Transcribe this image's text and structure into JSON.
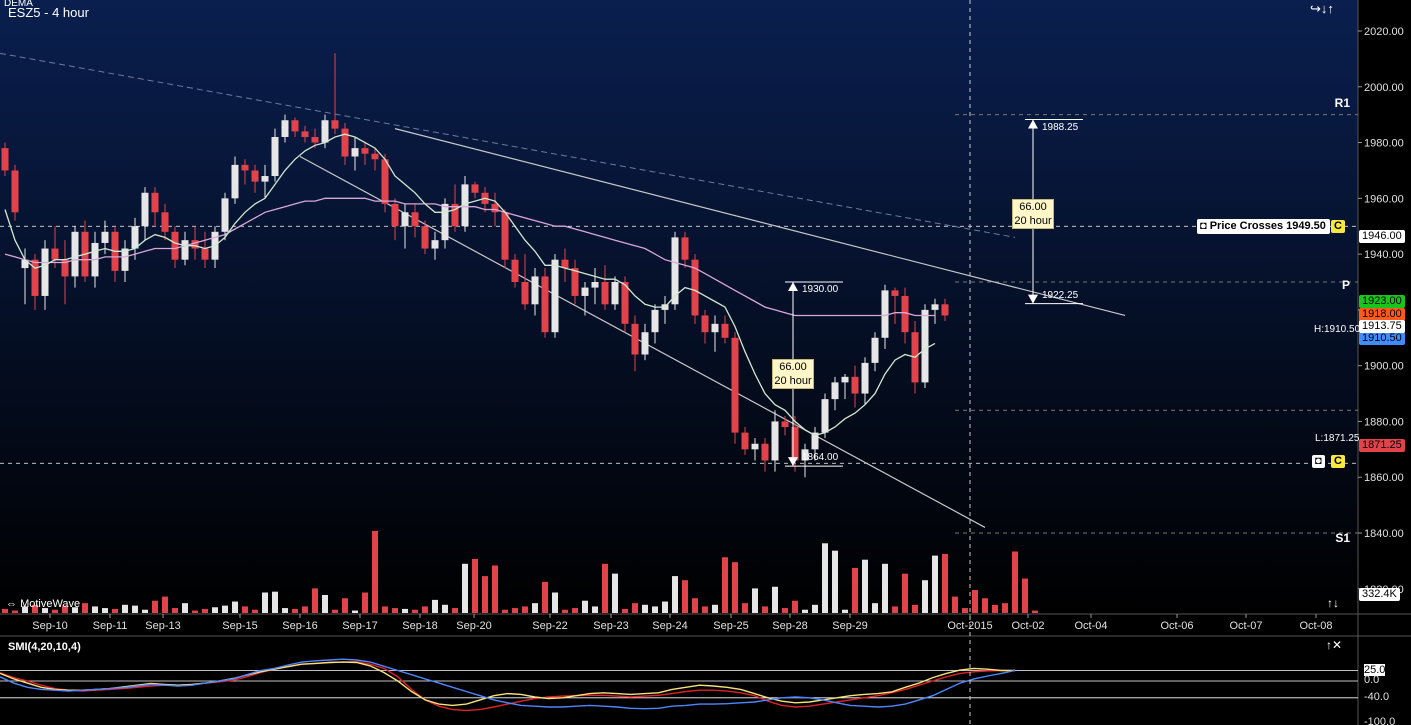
{
  "header": {
    "symbol_label": "ESZ5 - 4 hour",
    "indicator_label": "DEMA",
    "logo_text": "MotiveWave"
  },
  "nav": {
    "arrows": "↪↓↑",
    "scroll": "↑↓",
    "close_icons": "↑✕"
  },
  "colors": {
    "up": "#e6e6e6",
    "down": "#e2434b",
    "bg_top": "#0a1f4f",
    "bg_bottom": "#000000",
    "ema_fast": "#cfe9cf",
    "ema_slow": "#d8a8d8",
    "trend": "#c8c8c8",
    "ma_dashed": "#6d7aa0",
    "smi_blue": "#4d86ff",
    "smi_yellow": "#f4e27a",
    "smi_red": "#e0202a"
  },
  "price_axis": {
    "ticks": [
      2020,
      2000,
      1980,
      1960,
      1940,
      1920,
      1900,
      1880,
      1860,
      1840,
      1820
    ]
  },
  "x_axis": {
    "labels": [
      "Sep-10",
      "Sep-11",
      "Sep-13",
      "Sep-15",
      "Sep-16",
      "Sep-17",
      "Sep-18",
      "Sep-20",
      "Sep-22",
      "Sep-23",
      "Sep-24",
      "Sep-25",
      "Sep-28",
      "Sep-29",
      "Oct-2015",
      "Oct-02",
      "Oct-04",
      "Oct-06",
      "Oct-07",
      "Oct-08"
    ]
  },
  "levels": {
    "r1": "R1",
    "p": "P",
    "s1": "S1"
  },
  "price_tags": {
    "level_1946": "1946.00",
    "level_1923": "1923.00",
    "level_1918": "1918.00",
    "level_1913": "1913.75",
    "level_1910": "1910.50",
    "level_1871": "1871.25",
    "high_label": "H:1910.50",
    "low_label": "L:1871.25",
    "volume": "332.4K"
  },
  "alerts": {
    "price_cross": "Price Crosses 1949.50",
    "c1": "C",
    "c2": "C"
  },
  "measure1": {
    "top": "1930.00",
    "bottom": "1864.00",
    "line1": "66.00",
    "line2": "20 hour"
  },
  "measure2": {
    "top": "1988.25",
    "bottom": "1922.25",
    "line1": "66.00",
    "line2": "20 hour"
  },
  "smi": {
    "label": "SMI(4,20,10,4)",
    "ticks": [
      "25.0",
      "0.0",
      "-40.0",
      "-100.0"
    ]
  },
  "chart_data": {
    "type": "candlestick",
    "title": "ESZ5 - 4 hour",
    "ylim": [
      1812,
      2025
    ],
    "candles": [
      [
        1978,
        1980,
        1968,
        1970
      ],
      [
        1970,
        1972,
        1952,
        1955
      ],
      [
        1935,
        1942,
        1922,
        1938
      ],
      [
        1938,
        1940,
        1920,
        1925
      ],
      [
        1925,
        1945,
        1920,
        1942
      ],
      [
        1942,
        1950,
        1935,
        1938
      ],
      [
        1938,
        1945,
        1922,
        1932
      ],
      [
        1932,
        1950,
        1928,
        1948
      ],
      [
        1948,
        1952,
        1930,
        1932
      ],
      [
        1932,
        1948,
        1928,
        1944
      ],
      [
        1944,
        1952,
        1940,
        1948
      ],
      [
        1948,
        1950,
        1930,
        1934
      ],
      [
        1934,
        1945,
        1930,
        1942
      ],
      [
        1942,
        1953,
        1938,
        1950
      ],
      [
        1950,
        1964,
        1945,
        1962
      ],
      [
        1962,
        1964,
        1950,
        1955
      ],
      [
        1955,
        1958,
        1945,
        1948
      ],
      [
        1948,
        1950,
        1935,
        1938
      ],
      [
        1938,
        1948,
        1936,
        1945
      ],
      [
        1945,
        1950,
        1938,
        1942
      ],
      [
        1942,
        1948,
        1935,
        1938
      ],
      [
        1938,
        1950,
        1935,
        1948
      ],
      [
        1948,
        1962,
        1945,
        1960
      ],
      [
        1960,
        1975,
        1958,
        1972
      ],
      [
        1972,
        1974,
        1965,
        1970
      ],
      [
        1970,
        1972,
        1962,
        1966
      ],
      [
        1966,
        1972,
        1960,
        1968
      ],
      [
        1968,
        1985,
        1966,
        1982
      ],
      [
        1982,
        1990,
        1980,
        1988
      ],
      [
        1988,
        1989,
        1982,
        1984
      ],
      [
        1984,
        1986,
        1980,
        1982
      ],
      [
        1982,
        1985,
        1978,
        1980
      ],
      [
        1980,
        1990,
        1978,
        1988
      ],
      [
        1988,
        2012,
        1983,
        1985
      ],
      [
        1985,
        1987,
        1972,
        1975
      ],
      [
        1975,
        1982,
        1970,
        1978
      ],
      [
        1978,
        1980,
        1972,
        1976
      ],
      [
        1976,
        1978,
        1970,
        1974
      ],
      [
        1974,
        1976,
        1955,
        1958
      ],
      [
        1958,
        1960,
        1945,
        1950
      ],
      [
        1950,
        1958,
        1942,
        1955
      ],
      [
        1955,
        1958,
        1946,
        1950
      ],
      [
        1950,
        1952,
        1940,
        1942
      ],
      [
        1942,
        1948,
        1938,
        1945
      ],
      [
        1945,
        1960,
        1942,
        1958
      ],
      [
        1958,
        1965,
        1948,
        1950
      ],
      [
        1950,
        1968,
        1948,
        1965
      ],
      [
        1965,
        1966,
        1960,
        1962
      ],
      [
        1962,
        1964,
        1955,
        1958
      ],
      [
        1958,
        1962,
        1950,
        1955
      ],
      [
        1955,
        1956,
        1935,
        1938
      ],
      [
        1938,
        1940,
        1928,
        1930
      ],
      [
        1930,
        1940,
        1920,
        1922
      ],
      [
        1922,
        1935,
        1918,
        1932
      ],
      [
        1932,
        1935,
        1910,
        1912
      ],
      [
        1912,
        1940,
        1910,
        1938
      ],
      [
        1938,
        1942,
        1930,
        1935
      ],
      [
        1935,
        1938,
        1922,
        1925
      ],
      [
        1925,
        1930,
        1918,
        1928
      ],
      [
        1928,
        1935,
        1922,
        1930
      ],
      [
        1930,
        1936,
        1920,
        1922
      ],
      [
        1922,
        1932,
        1920,
        1930
      ],
      [
        1930,
        1932,
        1912,
        1915
      ],
      [
        1915,
        1918,
        1898,
        1904
      ],
      [
        1904,
        1915,
        1902,
        1912
      ],
      [
        1912,
        1922,
        1908,
        1920
      ],
      [
        1920,
        1925,
        1915,
        1922
      ],
      [
        1922,
        1948,
        1920,
        1946
      ],
      [
        1946,
        1948,
        1935,
        1938
      ],
      [
        1938,
        1940,
        1915,
        1918
      ],
      [
        1918,
        1920,
        1908,
        1912
      ],
      [
        1912,
        1918,
        1905,
        1915
      ],
      [
        1915,
        1918,
        1908,
        1910
      ],
      [
        1910,
        1912,
        1872,
        1876
      ],
      [
        1876,
        1878,
        1868,
        1870
      ],
      [
        1870,
        1874,
        1866,
        1872
      ],
      [
        1872,
        1874,
        1862,
        1866
      ],
      [
        1866,
        1884,
        1862,
        1880
      ],
      [
        1880,
        1882,
        1875,
        1878
      ],
      [
        1878,
        1882,
        1862,
        1866
      ],
      [
        1866,
        1872,
        1860,
        1870
      ],
      [
        1870,
        1878,
        1866,
        1876
      ],
      [
        1876,
        1890,
        1874,
        1888
      ],
      [
        1888,
        1896,
        1884,
        1894
      ],
      [
        1894,
        1897,
        1888,
        1896
      ],
      [
        1896,
        1900,
        1885,
        1890
      ],
      [
        1890,
        1903,
        1886,
        1901
      ],
      [
        1901,
        1912,
        1898,
        1910
      ],
      [
        1910,
        1929,
        1906,
        1927
      ],
      [
        1927,
        1928,
        1915,
        1925
      ],
      [
        1925,
        1928,
        1908,
        1912
      ],
      [
        1912,
        1916,
        1890,
        1894
      ],
      [
        1894,
        1922,
        1892,
        1920
      ],
      [
        1920,
        1924,
        1915,
        1922
      ],
      [
        1922,
        1924,
        1916,
        1918
      ]
    ],
    "volume_max": 100,
    "volume": [
      5,
      3,
      8,
      10,
      6,
      4,
      9,
      7,
      12,
      8,
      6,
      5,
      10,
      9,
      4,
      15,
      20,
      6,
      12,
      3,
      5,
      7,
      9,
      14,
      8,
      4,
      25,
      26,
      6,
      5,
      8,
      30,
      22,
      4,
      18,
      3,
      25,
      100,
      8,
      6,
      5,
      4,
      8,
      16,
      10,
      6,
      60,
      66,
      45,
      58,
      4,
      6,
      8,
      12,
      38,
      25,
      4,
      6,
      15,
      8,
      60,
      48,
      5,
      12,
      10,
      8,
      14,
      45,
      40,
      18,
      8,
      10,
      68,
      62,
      12,
      30,
      8,
      32,
      6,
      15,
      4,
      10,
      85,
      76,
      4,
      55,
      65,
      12,
      60,
      8,
      48,
      10,
      40,
      70,
      72,
      20,
      6,
      28,
      18,
      10,
      12,
      75,
      42,
      3
    ],
    "ema_fast": [
      1956,
      1945,
      1938,
      1935,
      1936,
      1938,
      1938,
      1939,
      1940,
      1941,
      1942,
      1941,
      1941,
      1942,
      1945,
      1947,
      1946,
      1944,
      1943,
      1943,
      1942,
      1943,
      1946,
      1951,
      1955,
      1958,
      1960,
      1965,
      1970,
      1974,
      1977,
      1979,
      1980,
      1982,
      1983,
      1982,
      1980,
      1978,
      1974,
      1968,
      1965,
      1962,
      1958,
      1955,
      1955,
      1956,
      1958,
      1959,
      1960,
      1959,
      1955,
      1950,
      1945,
      1941,
      1936,
      1936,
      1935,
      1934,
      1933,
      1932,
      1931,
      1931,
      1929,
      1925,
      1922,
      1921,
      1921,
      1925,
      1928,
      1927,
      1925,
      1923,
      1921,
      1914,
      1905,
      1897,
      1890,
      1886,
      1884,
      1880,
      1877,
      1875,
      1876,
      1878,
      1881,
      1883,
      1886,
      1890,
      1897,
      1902,
      1904,
      1903,
      1906,
      1908
    ],
    "ema_slow": [
      1940,
      1939,
      1938,
      1937,
      1937,
      1937,
      1937,
      1938,
      1938,
      1938,
      1939,
      1939,
      1939,
      1940,
      1941,
      1942,
      1942,
      1942,
      1943,
      1944,
      1945,
      1946,
      1947,
      1949,
      1951,
      1953,
      1955,
      1956,
      1957,
      1958,
      1959,
      1959,
      1960,
      1960,
      1960,
      1960,
      1960,
      1959,
      1959,
      1959,
      1958,
      1958,
      1958,
      1958,
      1957,
      1957,
      1957,
      1957,
      1956,
      1956,
      1955,
      1954,
      1953,
      1952,
      1951,
      1950,
      1950,
      1949,
      1948,
      1947,
      1946,
      1945,
      1944,
      1943,
      1942,
      1940,
      1938,
      1937,
      1936,
      1935,
      1933,
      1931,
      1929,
      1927,
      1925,
      1923,
      1921,
      1920,
      1919,
      1918,
      1918,
      1918,
      1918,
      1918,
      1918,
      1918,
      1918,
      1918,
      1918,
      1919,
      1919,
      1918,
      1918,
      1918
    ],
    "smi_blue": [
      10,
      -5,
      -15,
      -20,
      -22,
      -24,
      -22,
      -20,
      -18,
      -16,
      -12,
      -8,
      -10,
      -12,
      -10,
      -5,
      0,
      5,
      15,
      25,
      30,
      38,
      45,
      48,
      50,
      52,
      50,
      45,
      35,
      25,
      15,
      5,
      -5,
      -15,
      -25,
      -35,
      -45,
      -52,
      -58,
      -60,
      -62,
      -62,
      -60,
      -58,
      -60,
      -62,
      -65,
      -66,
      -65,
      -60,
      -58,
      -55,
      -55,
      -54,
      -52,
      -50,
      -45,
      -40,
      -38,
      -40,
      -45,
      -52,
      -58,
      -60,
      -62,
      -60,
      -55,
      -45,
      -35,
      -20,
      -5,
      5,
      12,
      18,
      25
    ],
    "smi_yellow": [
      18,
      5,
      -5,
      -15,
      -20,
      -22,
      -22,
      -20,
      -18,
      -14,
      -10,
      -6,
      -8,
      -10,
      -8,
      -5,
      0,
      6,
      14,
      22,
      28,
      34,
      40,
      42,
      44,
      45,
      44,
      36,
      20,
      0,
      -25,
      -45,
      -55,
      -58,
      -55,
      -45,
      -35,
      -30,
      -32,
      -38,
      -42,
      -40,
      -35,
      -30,
      -28,
      -30,
      -32,
      -30,
      -28,
      -20,
      -15,
      -10,
      -12,
      -15,
      -20,
      -30,
      -40,
      -48,
      -52,
      -50,
      -45,
      -40,
      -35,
      -32,
      -30,
      -26,
      -15,
      -5,
      8,
      18,
      26,
      30,
      28,
      25,
      25
    ],
    "smi_red": [
      20,
      8,
      0,
      -10,
      -18,
      -22,
      -24,
      -22,
      -20,
      -18,
      -15,
      -12,
      -10,
      -10,
      -8,
      -5,
      -2,
      2,
      10,
      20,
      28,
      35,
      40,
      42,
      44,
      45,
      46,
      40,
      30,
      10,
      -20,
      -45,
      -60,
      -68,
      -70,
      -68,
      -62,
      -55,
      -48,
      -42,
      -38,
      -36,
      -35,
      -34,
      -34,
      -36,
      -38,
      -36,
      -34,
      -30,
      -25,
      -22,
      -22,
      -24,
      -28,
      -35,
      -48,
      -58,
      -62,
      -60,
      -55,
      -50,
      -45,
      -40,
      -35,
      -28,
      -20,
      -10,
      0,
      10,
      18,
      22,
      24,
      25,
      25
    ]
  }
}
